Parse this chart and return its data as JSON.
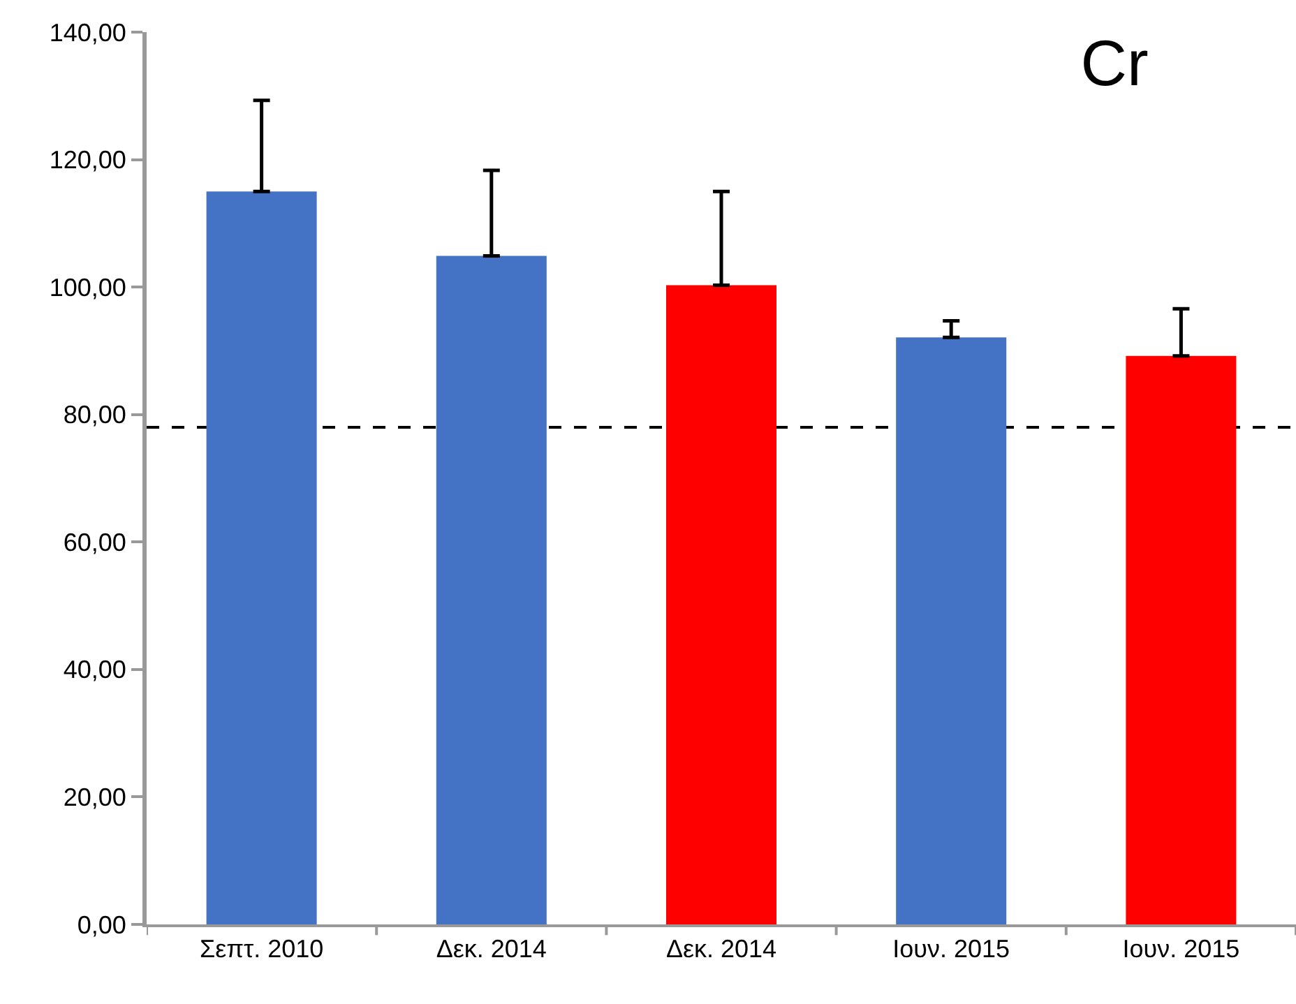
{
  "chart_data": {
    "type": "bar",
    "title": "Cr",
    "categories": [
      "Σεπτ. 2010",
      "Δεκ. 2014",
      "Δεκ. 2014",
      "Ιουν. 2015",
      "Ιουν. 2015"
    ],
    "values": [
      115.0,
      104.9,
      100.3,
      92.1,
      89.2
    ],
    "colors": [
      "#4472c4",
      "#4472c4",
      "#ff0000",
      "#4472c4",
      "#ff0000"
    ],
    "errors": [
      [
        115.0,
        129.3
      ],
      [
        104.9,
        118.3
      ],
      [
        100.3,
        115.0
      ],
      [
        92.1,
        94.7
      ],
      [
        89.2,
        96.6
      ]
    ],
    "ylim": [
      0,
      140
    ],
    "yticks": [
      {
        "value": 0,
        "label": "0,00"
      },
      {
        "value": 20,
        "label": "20,00"
      },
      {
        "value": 40,
        "label": "40,00"
      },
      {
        "value": 60,
        "label": "60,00"
      },
      {
        "value": 80,
        "label": "80,00"
      },
      {
        "value": 100,
        "label": "100,00"
      },
      {
        "value": 120,
        "label": "120,00"
      },
      {
        "value": 140,
        "label": "140,00"
      }
    ],
    "ref_lines": [
      {
        "axis": "y",
        "value": 78,
        "label": null,
        "color": "#000000",
        "line_style": "dashed"
      }
    ]
  }
}
